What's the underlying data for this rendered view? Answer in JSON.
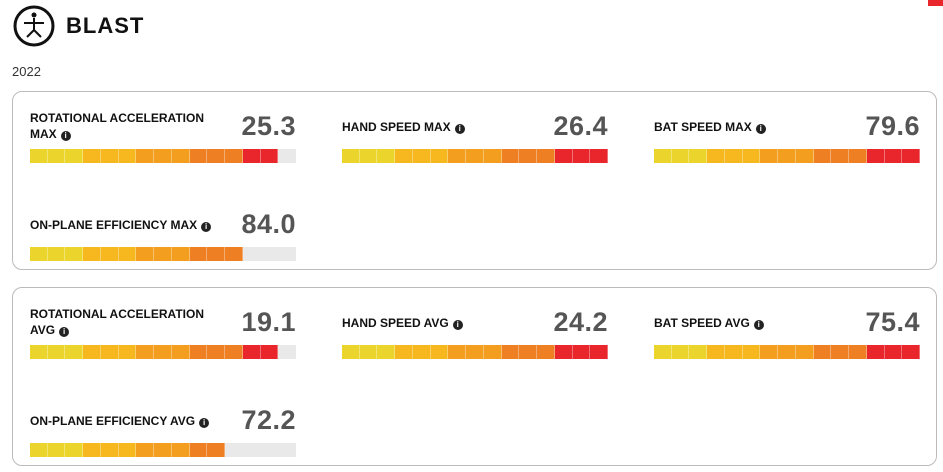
{
  "header": {
    "logo": "BLAST",
    "year": "2022"
  },
  "gauge": {
    "segments_total": 15,
    "colors": [
      "#ebd42b",
      "#f6b81e",
      "#f49e20",
      "#ef7f23",
      "#e8262b"
    ]
  },
  "panels": [
    {
      "metrics": [
        {
          "label": "ROTATIONAL ACCELERATION MAX",
          "value": "25.3",
          "fill": 14
        },
        {
          "label": "HAND SPEED MAX",
          "value": "26.4",
          "fill": 15
        },
        {
          "label": "BAT SPEED MAX",
          "value": "79.6",
          "fill": 15
        },
        {
          "label": "ON-PLANE EFFICIENCY MAX",
          "value": "84.0",
          "fill": 12
        }
      ]
    },
    {
      "metrics": [
        {
          "label": "ROTATIONAL ACCELERATION AVG",
          "value": "19.1",
          "fill": 14
        },
        {
          "label": "HAND SPEED AVG",
          "value": "24.2",
          "fill": 15
        },
        {
          "label": "BAT SPEED AVG",
          "value": "75.4",
          "fill": 15
        },
        {
          "label": "ON-PLANE EFFICIENCY AVG",
          "value": "72.2",
          "fill": 11
        }
      ]
    }
  ]
}
